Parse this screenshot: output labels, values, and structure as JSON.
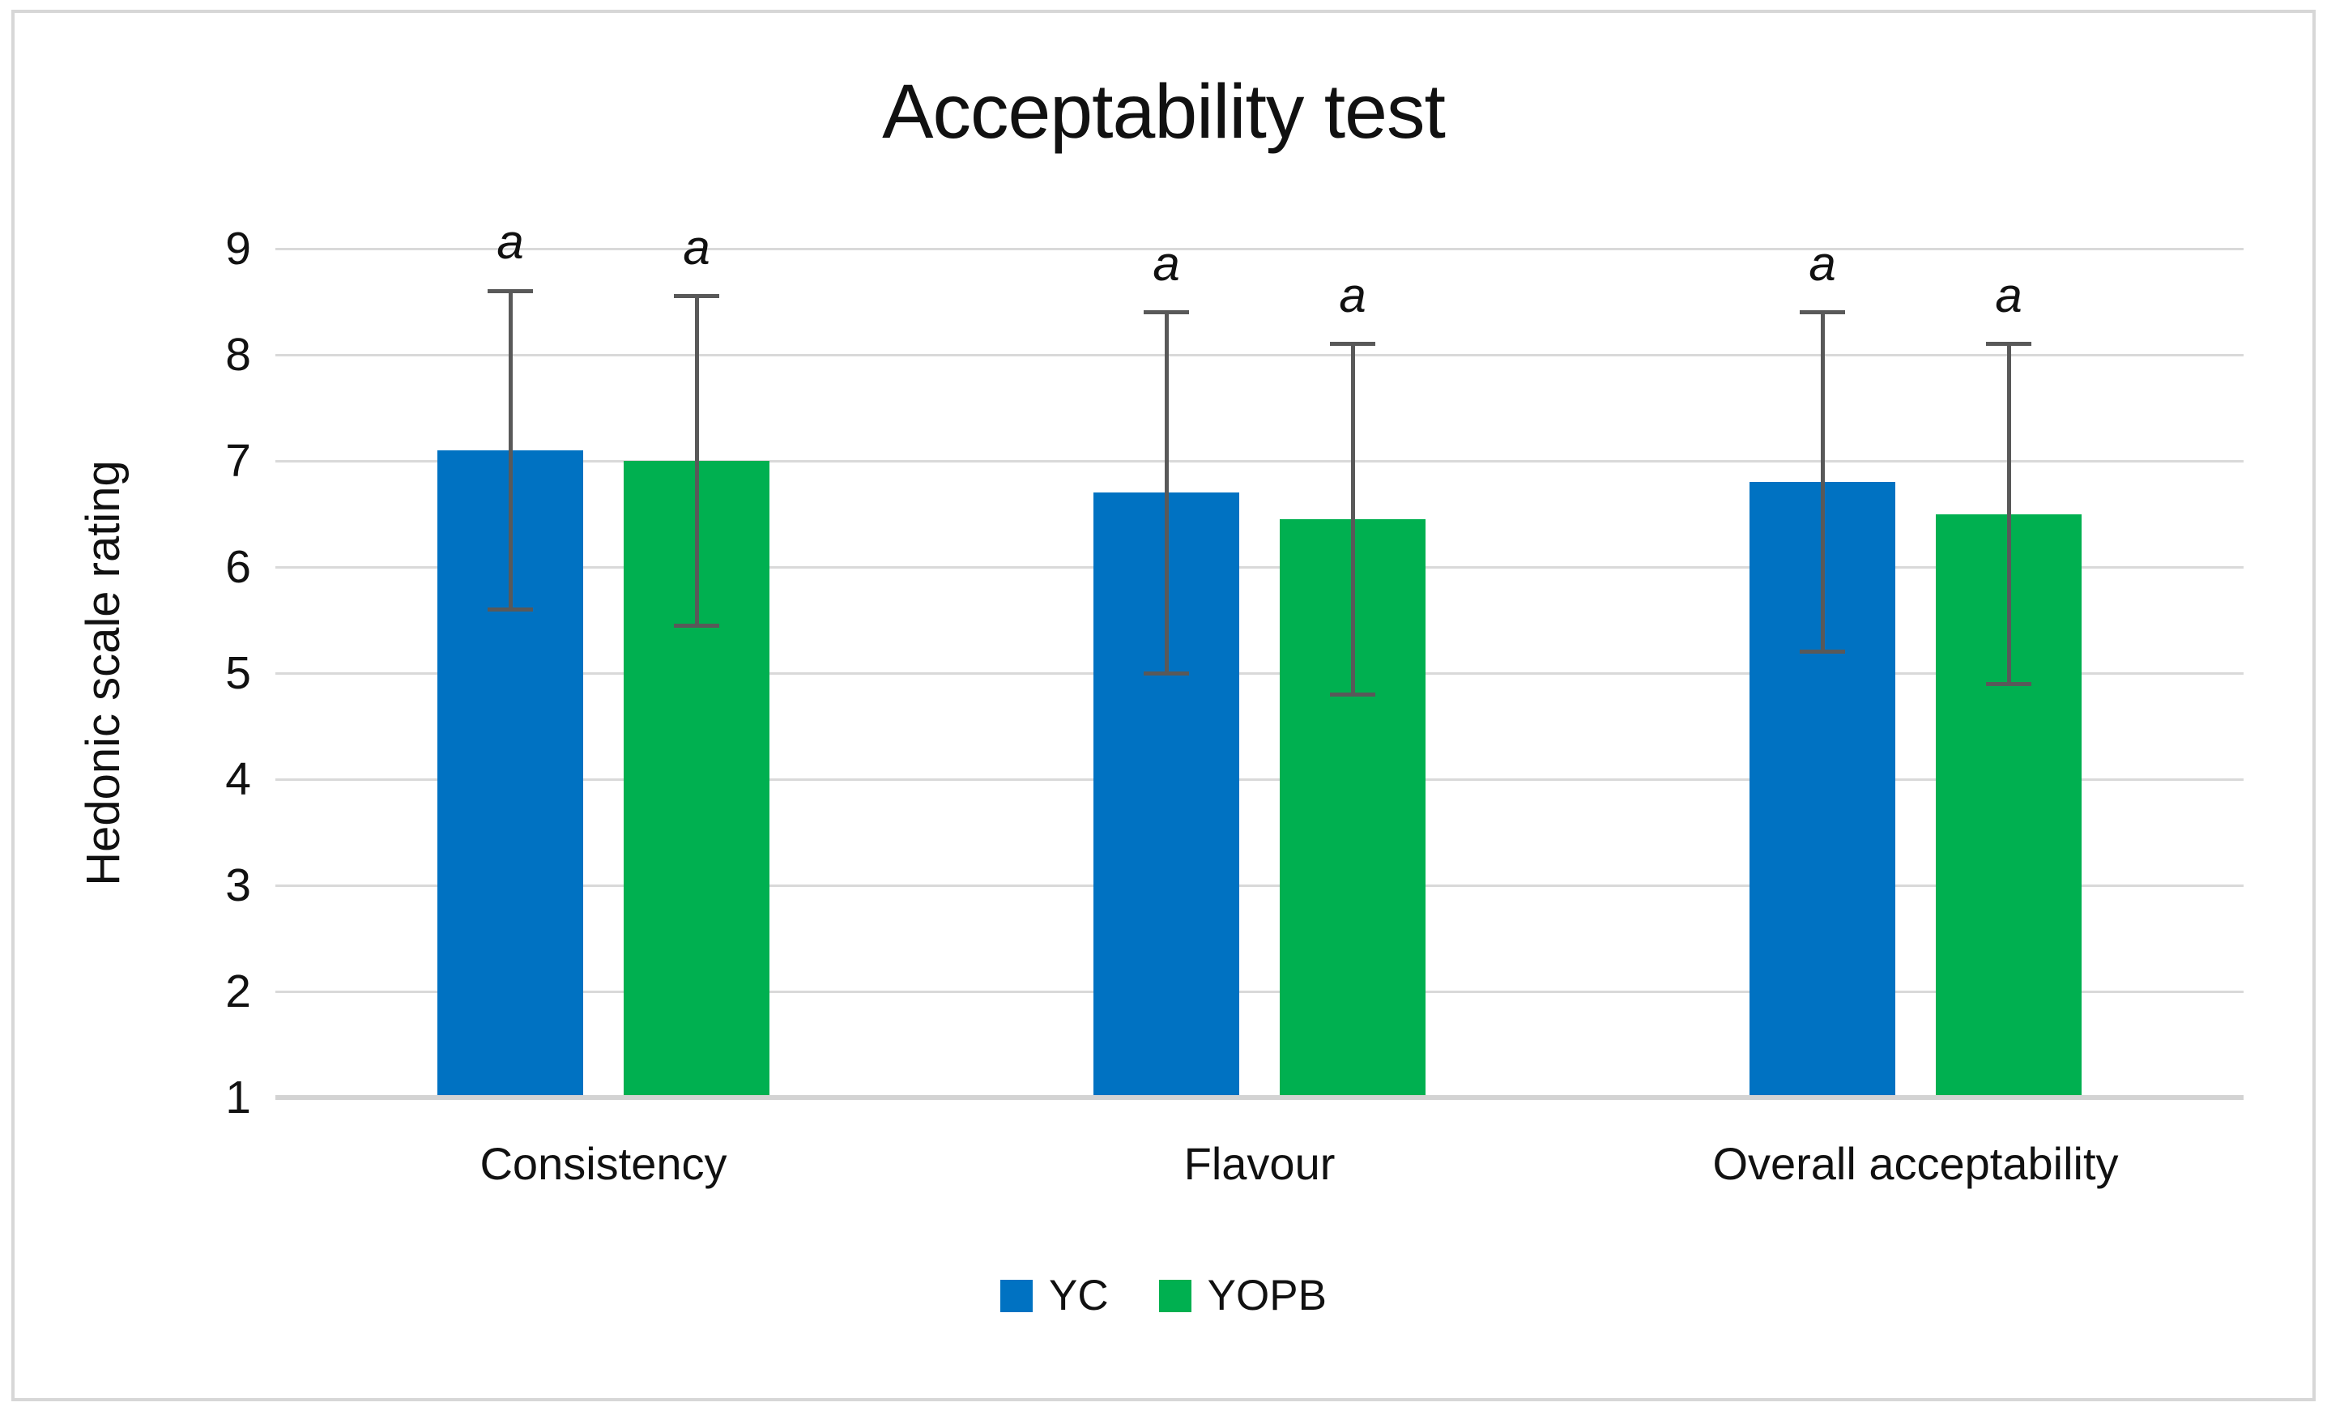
{
  "chart_data": {
    "type": "bar",
    "title": "Acceptability test",
    "xlabel": "",
    "ylabel": "Hedonic scale rating",
    "ylim": [
      1,
      9
    ],
    "yticks": [
      1,
      2,
      3,
      4,
      5,
      6,
      7,
      8,
      9
    ],
    "grid": true,
    "legend_position": "bottom",
    "categories": [
      "Consistency",
      "Flavour",
      "Overall acceptability"
    ],
    "series": [
      {
        "name": "YC",
        "color": "#0072C2",
        "values": [
          7.1,
          6.7,
          6.8
        ],
        "error_low": [
          5.6,
          5.0,
          5.2
        ],
        "error_high": [
          8.6,
          8.4,
          8.4
        ],
        "sig_labels": [
          "a",
          "a",
          "a"
        ]
      },
      {
        "name": "YOPB",
        "color": "#00B050",
        "values": [
          7.0,
          6.45,
          6.5
        ],
        "error_low": [
          5.45,
          4.8,
          4.9
        ],
        "error_high": [
          8.55,
          8.1,
          8.1
        ],
        "sig_labels": [
          "a",
          "a",
          "a"
        ]
      }
    ],
    "colors": {
      "error_bar": "#595959",
      "gridline": "#D9D9D9",
      "baseline": "#D3D3D3",
      "border": "#D7D7D7",
      "text": "#111111"
    }
  }
}
